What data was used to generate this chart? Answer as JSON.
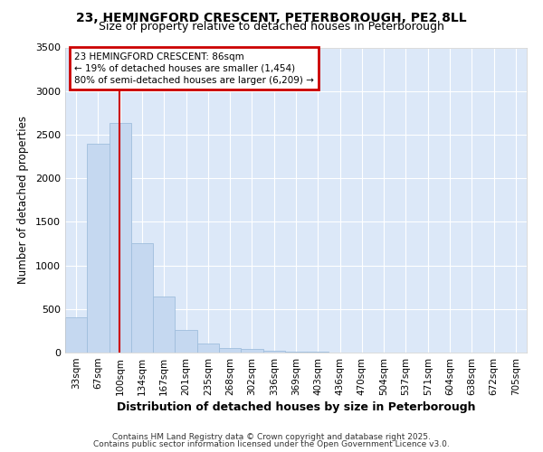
{
  "title_line1": "23, HEMINGFORD CRESCENT, PETERBOROUGH, PE2 8LL",
  "title_line2": "Size of property relative to detached houses in Peterborough",
  "xlabel": "Distribution of detached houses by size in Peterborough",
  "ylabel": "Number of detached properties",
  "bar_labels": [
    "33sqm",
    "67sqm",
    "100sqm",
    "134sqm",
    "167sqm",
    "201sqm",
    "235sqm",
    "268sqm",
    "302sqm",
    "336sqm",
    "369sqm",
    "403sqm",
    "436sqm",
    "470sqm",
    "504sqm",
    "537sqm",
    "571sqm",
    "604sqm",
    "638sqm",
    "672sqm",
    "705sqm"
  ],
  "bar_values": [
    400,
    2400,
    2630,
    1250,
    640,
    260,
    100,
    55,
    40,
    25,
    15,
    15,
    5,
    2,
    1,
    1,
    0,
    0,
    0,
    0,
    0
  ],
  "bar_color": "#c5d8f0",
  "bar_edgecolor": "#a0bedd",
  "fig_bg_color": "#ffffff",
  "plot_bg_color": "#dce8f8",
  "grid_color": "#ffffff",
  "vline_x": 1.97,
  "vline_color": "#cc0000",
  "annotation_line1": "23 HEMINGFORD CRESCENT: 86sqm",
  "annotation_line2": "← 19% of detached houses are smaller (1,454)",
  "annotation_line3": "80% of semi-detached houses are larger (6,209) →",
  "annotation_box_color": "#cc0000",
  "ylim": [
    0,
    3500
  ],
  "yticks": [
    0,
    500,
    1000,
    1500,
    2000,
    2500,
    3000,
    3500
  ],
  "footer_line1": "Contains HM Land Registry data © Crown copyright and database right 2025.",
  "footer_line2": "Contains public sector information licensed under the Open Government Licence v3.0."
}
